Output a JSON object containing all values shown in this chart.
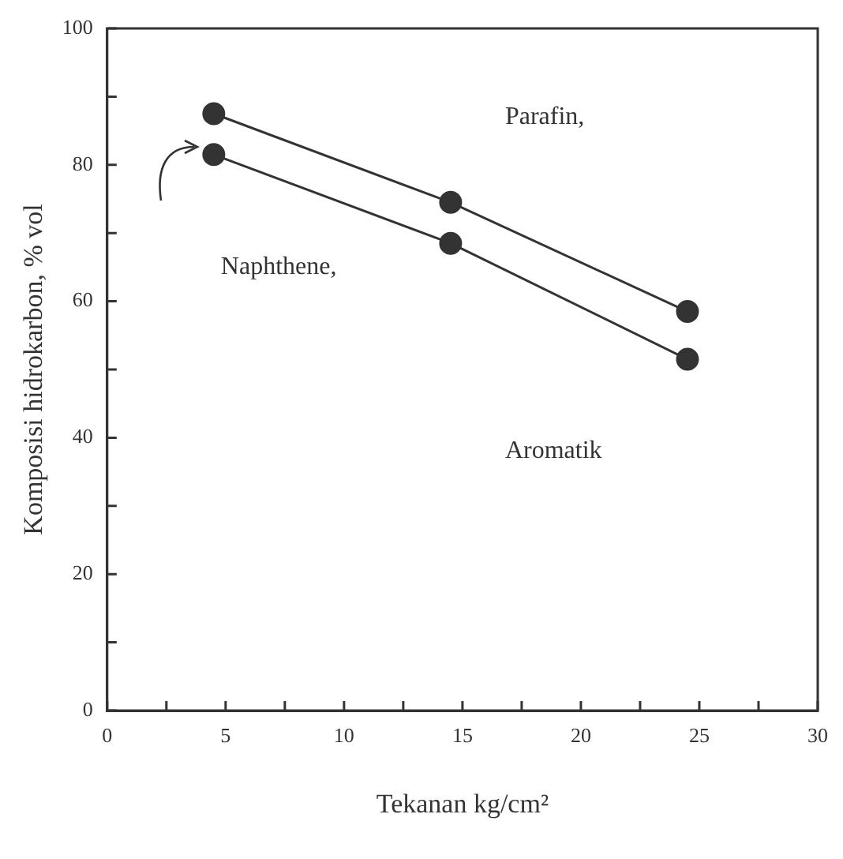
{
  "chart_data": {
    "type": "line",
    "xlabel": "Tekanan kg/cm²",
    "ylabel": "Komposisi hidrokarbon, % vol",
    "x": [
      4.5,
      14.5,
      24.5
    ],
    "series": [
      {
        "color": "#333333",
        "values": [
          87.5,
          74.5,
          58.5
        ]
      },
      {
        "color": "#333333",
        "values": [
          81.5,
          68.5,
          51.5
        ]
      }
    ],
    "xlim": [
      0,
      30
    ],
    "xticks": [
      0,
      {
        "value": 2.5,
        "label": null
      },
      5,
      {
        "value": 7.5,
        "label": null
      },
      10,
      {
        "value": 12.5,
        "label": null
      },
      15,
      {
        "value": 17.5,
        "label": null
      },
      20,
      {
        "value": 22.5,
        "label": null
      },
      25,
      {
        "value": 27.5,
        "label": null
      },
      30
    ],
    "ylim": [
      0,
      100
    ],
    "yticks": [
      0,
      {
        "value": 10,
        "label": null
      },
      20,
      {
        "value": 30,
        "label": null
      },
      40,
      {
        "value": 50,
        "label": null
      },
      60,
      {
        "value": 70,
        "label": null
      },
      80,
      {
        "value": 90,
        "label": null
      },
      100
    ],
    "grid": false,
    "legend": false,
    "marker": "circle",
    "line_style": "solid",
    "annotations": [
      "Parafin,",
      "Naphthene,",
      "Aromatik"
    ]
  }
}
